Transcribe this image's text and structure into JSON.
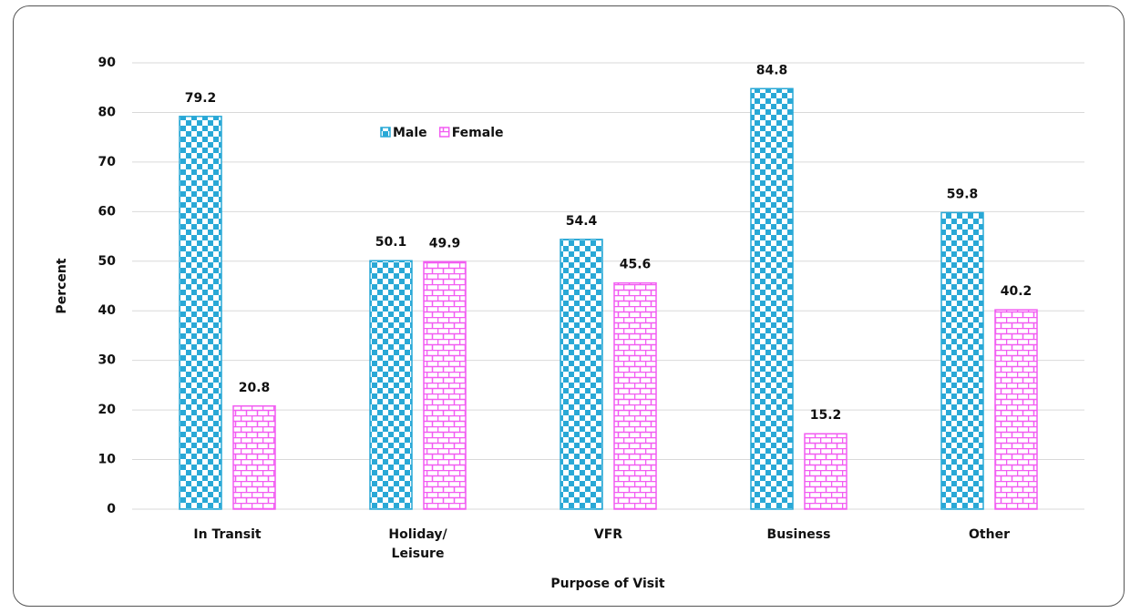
{
  "chart_data": {
    "type": "bar",
    "x_label": "Purpose of Visit",
    "y_label": "Percent",
    "categories": [
      "In Transit",
      "Holiday/\nLeisure",
      "VFR",
      "Business",
      "Other"
    ],
    "series": [
      {
        "name": "Male",
        "color": "#29a8d6",
        "values": [
          79.2,
          50.1,
          54.4,
          84.8,
          59.8
        ]
      },
      {
        "name": "Female",
        "color": "#f25cf2",
        "values": [
          20.8,
          49.9,
          45.6,
          15.2,
          40.2
        ]
      }
    ],
    "ylim": [
      0,
      90
    ],
    "yticks": [
      0,
      10,
      20,
      30,
      40,
      50,
      60,
      70,
      80,
      90
    ],
    "grid": true
  }
}
